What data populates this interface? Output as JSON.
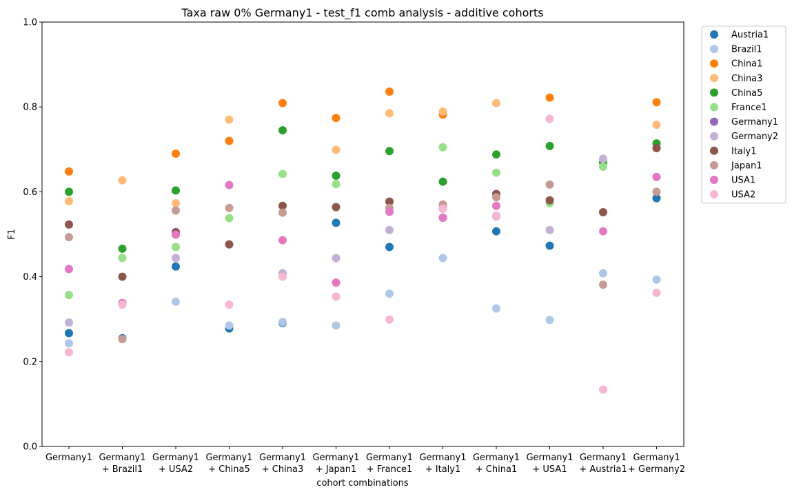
{
  "chart_data": {
    "type": "scatter",
    "title": "Taxa raw 0% Germany1 - test_f1 comb analysis - additive cohorts",
    "xlabel": "cohort combinations",
    "ylabel": "F1",
    "ylim": [
      0,
      1
    ],
    "yticks": [
      "0.0",
      "0.2",
      "0.4",
      "0.6",
      "0.8",
      "1.0"
    ],
    "yticks_values": [
      0,
      0.2,
      0.4,
      0.6,
      0.8,
      1.0
    ],
    "grid": false,
    "legend_position": "outside-top-right",
    "categories": [
      [
        "Germany1"
      ],
      [
        "Germany1",
        "+ Brazil1"
      ],
      [
        "Germany1",
        "+ USA2"
      ],
      [
        "Germany1",
        "+ China5"
      ],
      [
        "Germany1",
        "+ China3"
      ],
      [
        "Germany1",
        "+ Japan1"
      ],
      [
        "Germany1",
        "+ France1"
      ],
      [
        "Germany1",
        "+ Italy1"
      ],
      [
        "Germany1",
        "+ China1"
      ],
      [
        "Germany1",
        "+ USA1"
      ],
      [
        "Germany1",
        "+ Austria1"
      ],
      [
        "Germany1",
        "+ Germany2"
      ]
    ],
    "series": [
      {
        "name": "Austria1",
        "color": "#1f77b4",
        "values": [
          0.267,
          0.255,
          0.424,
          0.278,
          0.291,
          0.527,
          0.47,
          0.539,
          0.507,
          0.473,
          null,
          0.585
        ]
      },
      {
        "name": "Brazil1",
        "color": "#aec7e8",
        "values": [
          0.243,
          null,
          0.341,
          0.285,
          0.293,
          0.285,
          0.36,
          0.444,
          0.325,
          0.298,
          0.408,
          0.393
        ]
      },
      {
        "name": "China1",
        "color": "#ff7f0e",
        "values": [
          0.648,
          null,
          0.69,
          0.72,
          0.809,
          0.774,
          0.836,
          0.782,
          null,
          0.822,
          null,
          0.811
        ]
      },
      {
        "name": "China3",
        "color": "#ffbb78",
        "values": [
          0.578,
          0.627,
          0.573,
          0.77,
          null,
          0.699,
          0.785,
          0.789,
          0.809,
          null,
          null,
          0.758
        ]
      },
      {
        "name": "China5",
        "color": "#2ca02c",
        "values": [
          0.6,
          0.466,
          0.603,
          null,
          0.745,
          0.638,
          0.696,
          0.624,
          0.688,
          0.708,
          0.669,
          0.714
        ]
      },
      {
        "name": "France1",
        "color": "#98df8a",
        "values": [
          0.357,
          0.444,
          0.47,
          0.538,
          0.642,
          0.618,
          null,
          0.705,
          0.645,
          0.573,
          0.659,
          null
        ]
      },
      {
        "name": "Germany1",
        "color": "#9467bd",
        "values": [
          null,
          null,
          null,
          null,
          null,
          null,
          null,
          null,
          null,
          null,
          null,
          null
        ]
      },
      {
        "name": "Germany2",
        "color": "#c5b0d5",
        "values": [
          0.292,
          null,
          0.444,
          null,
          0.408,
          0.444,
          0.51,
          0.568,
          0.542,
          0.51,
          0.678,
          null
        ]
      },
      {
        "name": "Italy1",
        "color": "#8c564b",
        "values": [
          0.523,
          0.4,
          0.505,
          0.476,
          0.567,
          0.564,
          0.577,
          null,
          0.595,
          0.58,
          0.552,
          0.703
        ]
      },
      {
        "name": "Japan1",
        "color": "#c49c94",
        "values": [
          0.493,
          0.253,
          0.556,
          0.562,
          0.551,
          null,
          0.562,
          0.57,
          0.587,
          0.617,
          0.381,
          0.6
        ]
      },
      {
        "name": "USA1",
        "color": "#e377c2",
        "values": [
          0.418,
          0.338,
          0.499,
          0.616,
          0.486,
          0.386,
          0.553,
          0.539,
          0.567,
          null,
          0.507,
          0.635
        ]
      },
      {
        "name": "USA2",
        "color": "#f7b6d2",
        "values": [
          0.222,
          0.334,
          null,
          0.334,
          0.4,
          0.353,
          0.299,
          0.56,
          0.544,
          0.772,
          0.134,
          0.362
        ]
      }
    ]
  }
}
